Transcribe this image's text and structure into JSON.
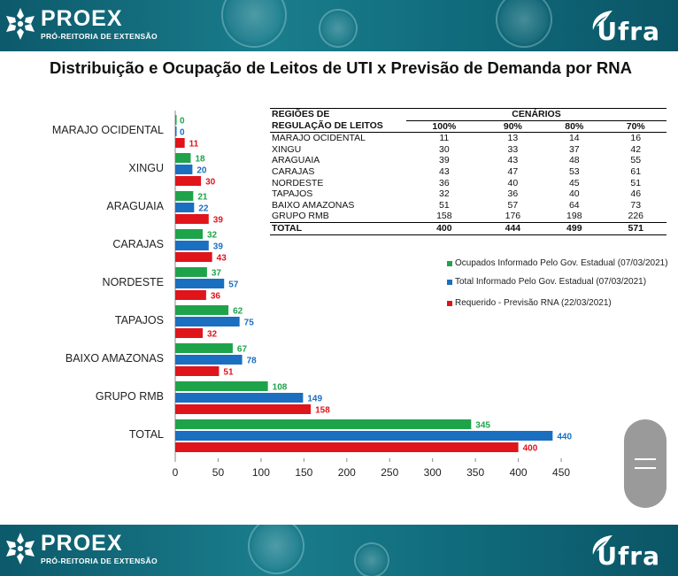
{
  "header": {
    "org": "PROEX",
    "org_sub": "PRÓ-REITORIA DE EXTENSÃO",
    "brand": "Ufra"
  },
  "footer": {
    "org": "PROEX",
    "org_sub": "PRÓ-REITORIA DE EXTENSÃO",
    "brand": "Ufra"
  },
  "colors": {
    "green": "#1fa34a",
    "blue": "#1a6fc0",
    "red": "#e0141b",
    "banner": "#0f6a7a"
  },
  "chart_data": {
    "type": "bar",
    "orientation": "horizontal",
    "title": "Distribuição e Ocupação de Leitos de UTI x Previsão de Demanda por RNA",
    "categories": [
      "MARAJO OCIDENTAL",
      "XINGU",
      "ARAGUAIA",
      "CARAJAS",
      "NORDESTE",
      "TAPAJOS",
      "BAIXO AMAZONAS",
      "GRUPO RMB",
      "TOTAL"
    ],
    "series": [
      {
        "name": "Ocupados Informado Pelo Gov. Estadual (07/03/2021)",
        "color": "#1fa34a",
        "values": [
          0,
          18,
          21,
          32,
          37,
          62,
          67,
          108,
          345
        ]
      },
      {
        "name": "Total Informado Pelo Gov. Estadual (07/03/2021)",
        "color": "#1a6fc0",
        "values": [
          0,
          20,
          22,
          39,
          57,
          75,
          78,
          149,
          440
        ]
      },
      {
        "name": "Requerido - Previsão RNA (22/03/2021)",
        "color": "#e0141b",
        "values": [
          11,
          30,
          39,
          43,
          36,
          32,
          51,
          158,
          400
        ]
      }
    ],
    "xticks": [
      "0",
      "50",
      "100",
      "150",
      "200",
      "250",
      "300",
      "350",
      "400",
      "450"
    ],
    "xlim": [
      0,
      450
    ],
    "grid": false,
    "legend": "right"
  },
  "table": {
    "head_regions_1": "REGIÕES DE",
    "head_regions_2": "REGULAÇÃO DE LEITOS",
    "head_scenarios": "CENÁRIOS",
    "columns": [
      "100%",
      "90%",
      "80%",
      "70%"
    ],
    "rows": [
      {
        "region": "MARAJO OCIDENTAL",
        "values": [
          "11",
          "13",
          "14",
          "16"
        ]
      },
      {
        "region": "XINGU",
        "values": [
          "30",
          "33",
          "37",
          "42"
        ]
      },
      {
        "region": "ARAGUAIA",
        "values": [
          "39",
          "43",
          "48",
          "55"
        ]
      },
      {
        "region": "CARAJAS",
        "values": [
          "43",
          "47",
          "53",
          "61"
        ]
      },
      {
        "region": "NORDESTE",
        "values": [
          "36",
          "40",
          "45",
          "51"
        ]
      },
      {
        "region": "TAPAJOS",
        "values": [
          "32",
          "36",
          "40",
          "46"
        ]
      },
      {
        "region": "BAIXO AMAZONAS",
        "values": [
          "51",
          "57",
          "64",
          "73"
        ]
      },
      {
        "region": "GRUPO RMB",
        "values": [
          "158",
          "176",
          "198",
          "226"
        ]
      }
    ],
    "total": {
      "region": "TOTAL",
      "values": [
        "400",
        "444",
        "499",
        "571"
      ]
    }
  }
}
